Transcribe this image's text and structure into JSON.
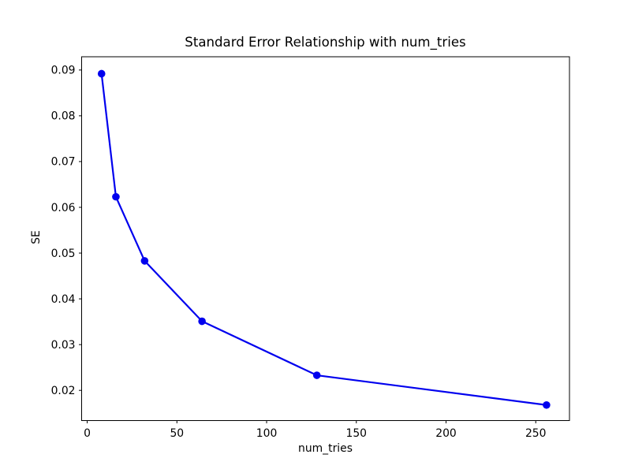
{
  "figure": {
    "background": "#ffffff"
  },
  "chart_data": {
    "type": "line",
    "title": "Standard Error Relationship with num_tries",
    "xlabel": "num_tries",
    "ylabel": "SE",
    "series": [
      {
        "name": "SE",
        "x": [
          8,
          16,
          32,
          64,
          128,
          256
        ],
        "y": [
          0.0892,
          0.0623,
          0.0483,
          0.0351,
          0.0233,
          0.0168
        ],
        "color": "#0000ee",
        "marker": "circle",
        "line_style": "solid"
      }
    ],
    "xlim": [
      -3.1,
      268.8
    ],
    "ylim": [
      0.0134,
      0.0929
    ],
    "xticks": [
      0,
      50,
      100,
      150,
      200,
      250
    ],
    "xtick_labels": [
      "0",
      "50",
      "100",
      "150",
      "200",
      "250"
    ],
    "yticks": [
      0.02,
      0.03,
      0.04,
      0.05,
      0.06,
      0.07,
      0.08,
      0.09
    ],
    "ytick_labels": [
      "0.02",
      "0.03",
      "0.04",
      "0.05",
      "0.06",
      "0.07",
      "0.08",
      "0.09"
    ],
    "grid": false,
    "legend": "none",
    "axes_color": "#000000",
    "text_color": "#000000"
  }
}
